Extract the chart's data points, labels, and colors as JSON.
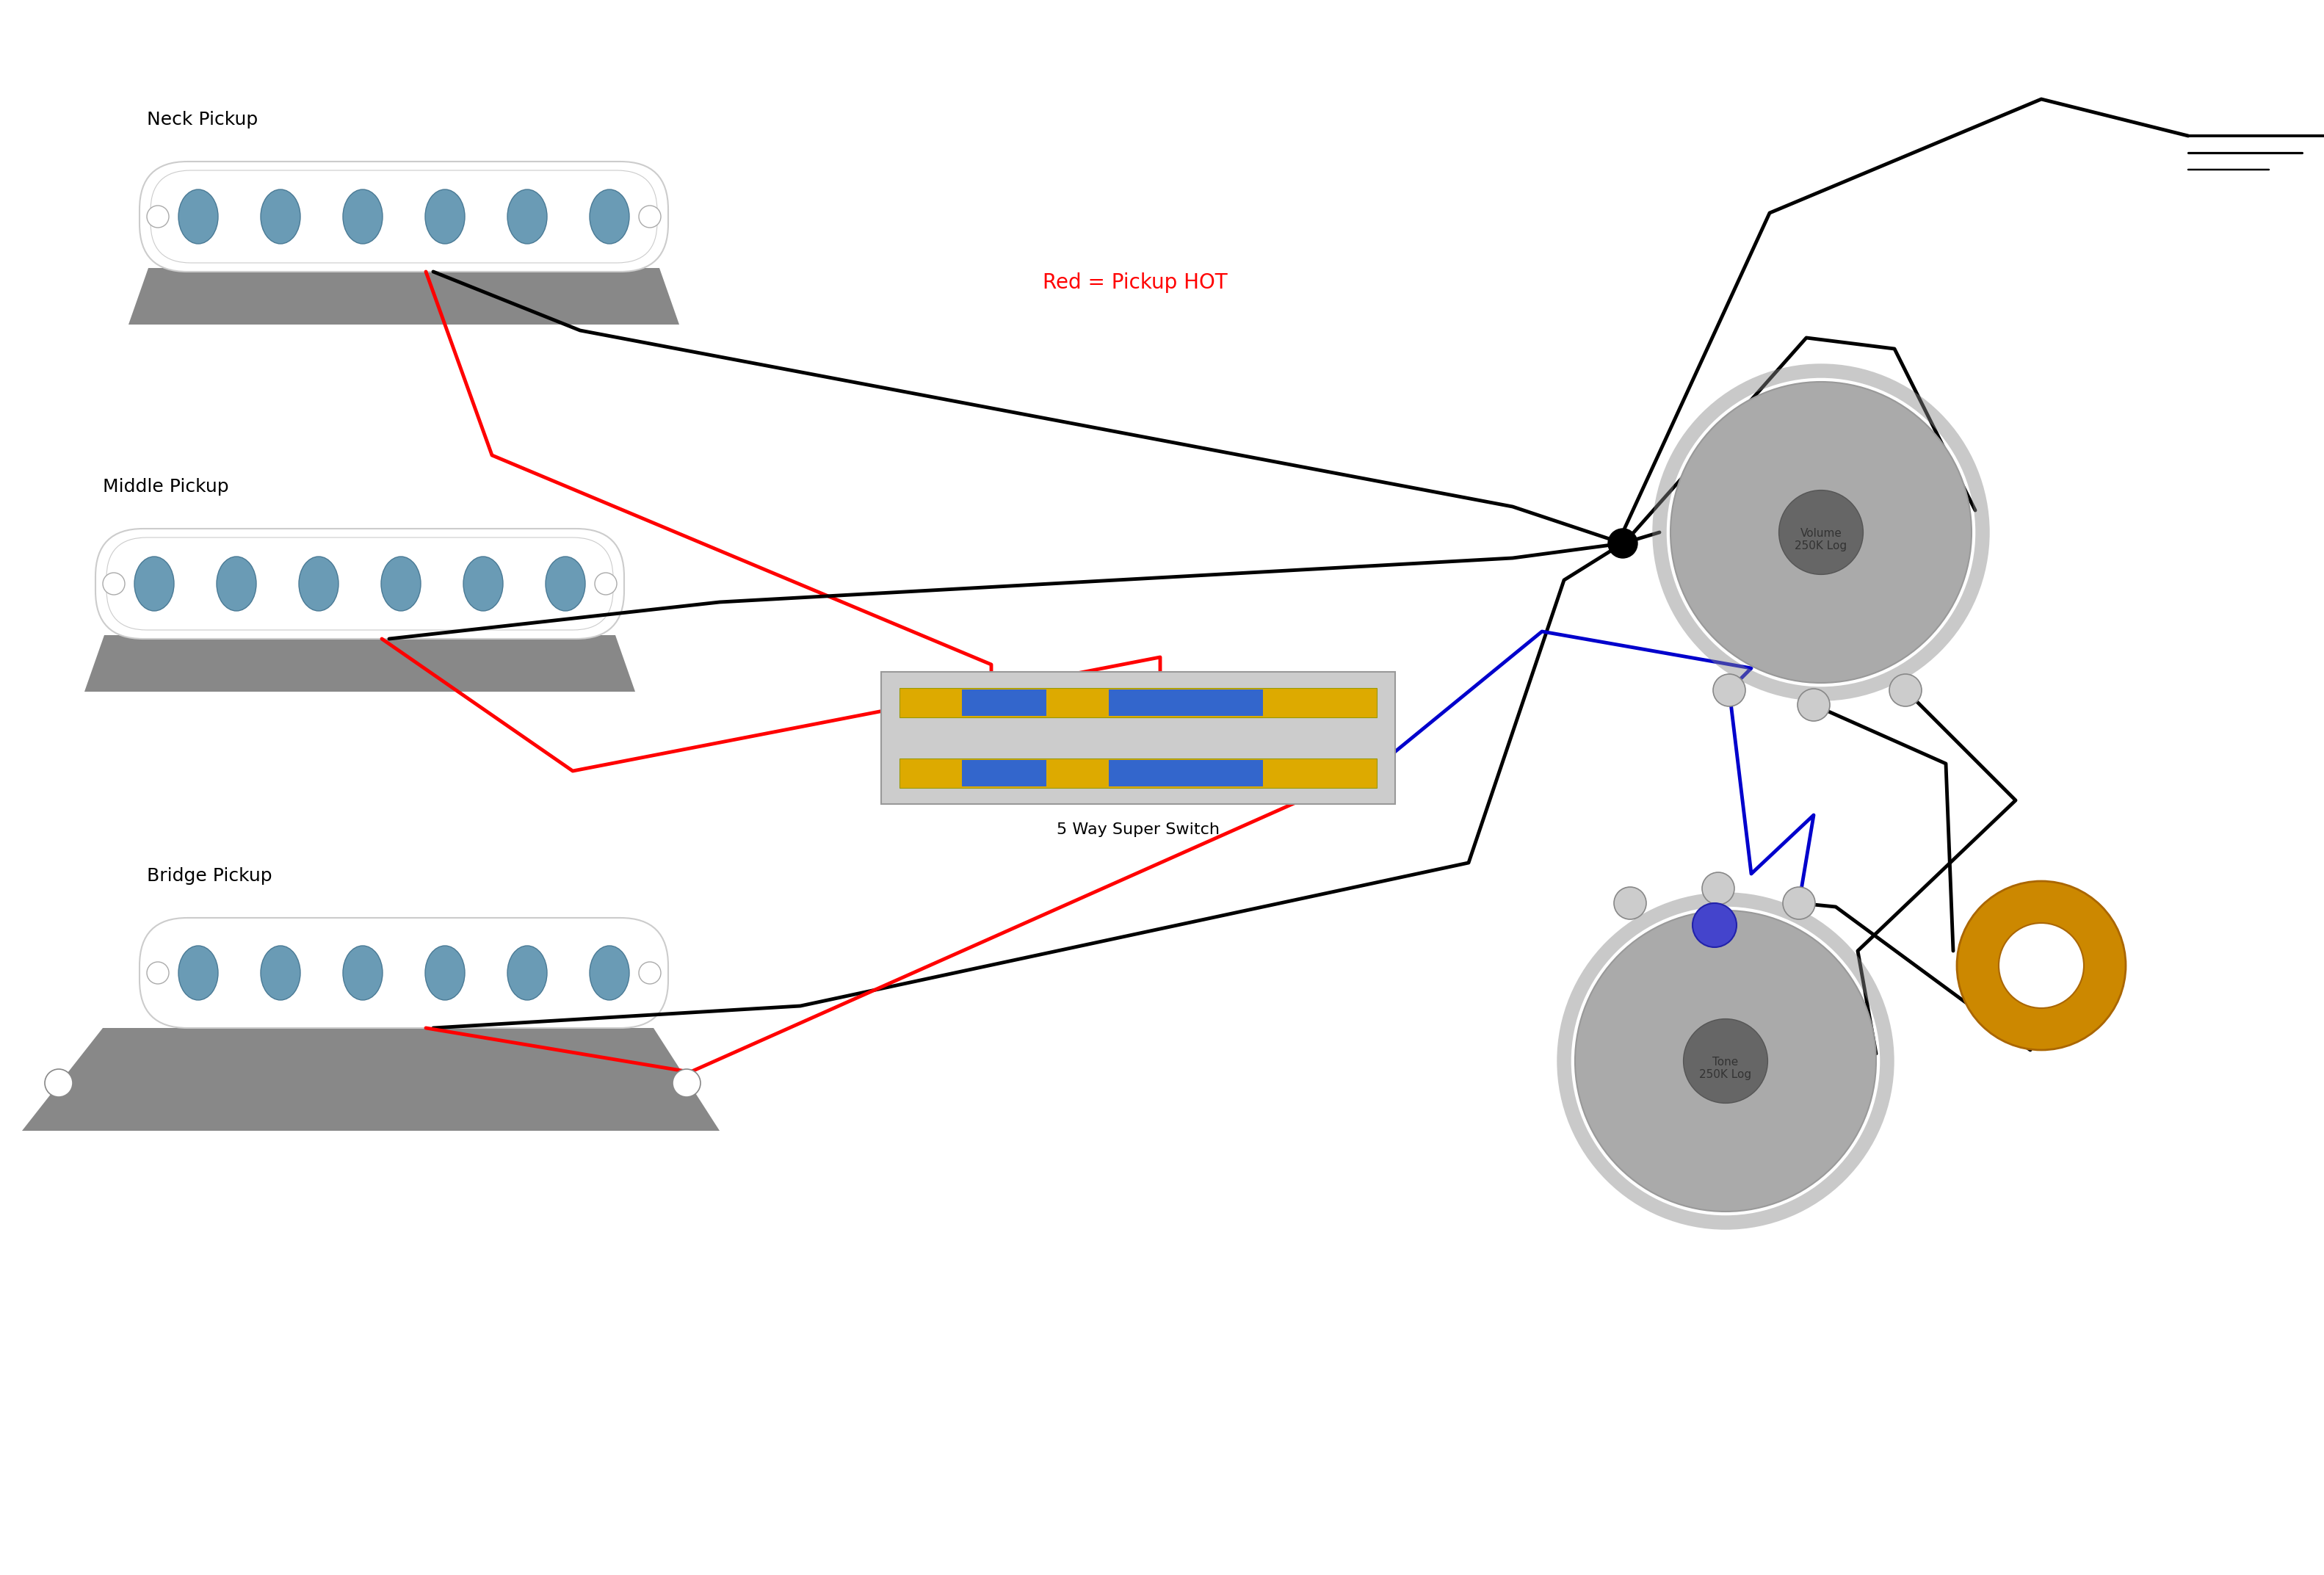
{
  "bg_color": "#ffffff",
  "pickup_color": "#ffffff",
  "pickup_outline": "#cccccc",
  "pickup_base_color": "#888888",
  "pole_color": "#6a9bb5",
  "neck_pickup_label": "Neck Pickup",
  "middle_pickup_label": "Middle Pickup",
  "bridge_pickup_label": "Bridge Pickup",
  "switch_label": "5 Way Super Switch",
  "volume_label": "Volume\n250K Log",
  "tone_label": "Tone\n250K Log",
  "hot_label": "Red = Pickup HOT",
  "wire_black": "#000000",
  "wire_red": "#ff0000",
  "wire_blue": "#0000cc",
  "pot_color": "#aaaaaa",
  "cap_color": "#cc8800",
  "switch_body_color": "#cccccc",
  "switch_gold": "#ddaa00",
  "switch_blue": "#3366cc"
}
